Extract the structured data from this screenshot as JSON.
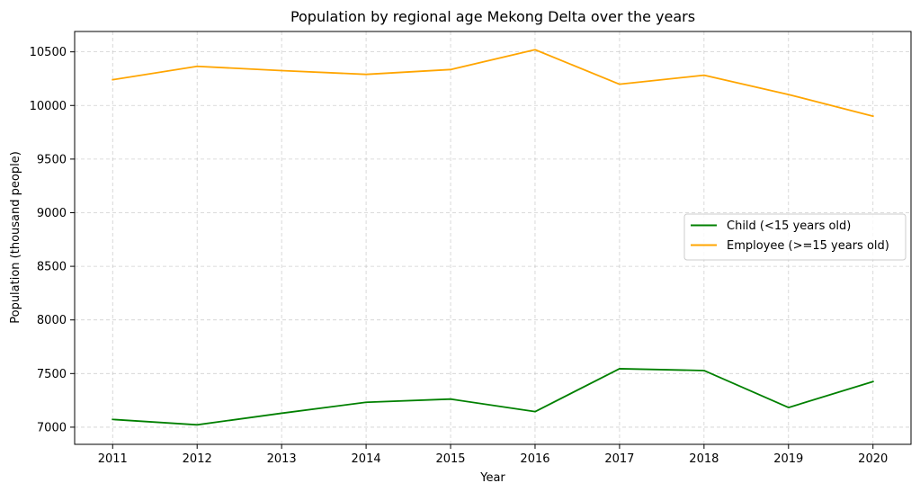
{
  "chart_data": {
    "type": "line",
    "title": "Population by regional age Mekong Delta over the years",
    "xlabel": "Year",
    "ylabel": "Population (thousand people)",
    "x": [
      "2011",
      "2012",
      "2013",
      "2014",
      "2015",
      "2016",
      "2017",
      "2018",
      "2019",
      "2020"
    ],
    "x_numeric": [
      2011,
      2012,
      2013,
      2014,
      2015,
      2016,
      2017,
      2018,
      2019,
      2020
    ],
    "xlim": [
      2010.55,
      2020.45
    ],
    "ylim": [
      6840,
      10690
    ],
    "yticks": [
      7000,
      7500,
      8000,
      8500,
      9000,
      9500,
      10000,
      10500
    ],
    "grid": true,
    "legend_position": "center-right",
    "series": [
      {
        "name": "Child (<15 years old)",
        "color": "#008000",
        "values": [
          7072,
          7022,
          7130,
          7232,
          7262,
          7145,
          7545,
          7528,
          7183,
          7425
        ]
      },
      {
        "name": "Employee (>=15 years old)",
        "color": "#FFA500",
        "values": [
          10240,
          10365,
          10325,
          10290,
          10335,
          10520,
          10198,
          10282,
          10102,
          9900
        ]
      }
    ]
  }
}
